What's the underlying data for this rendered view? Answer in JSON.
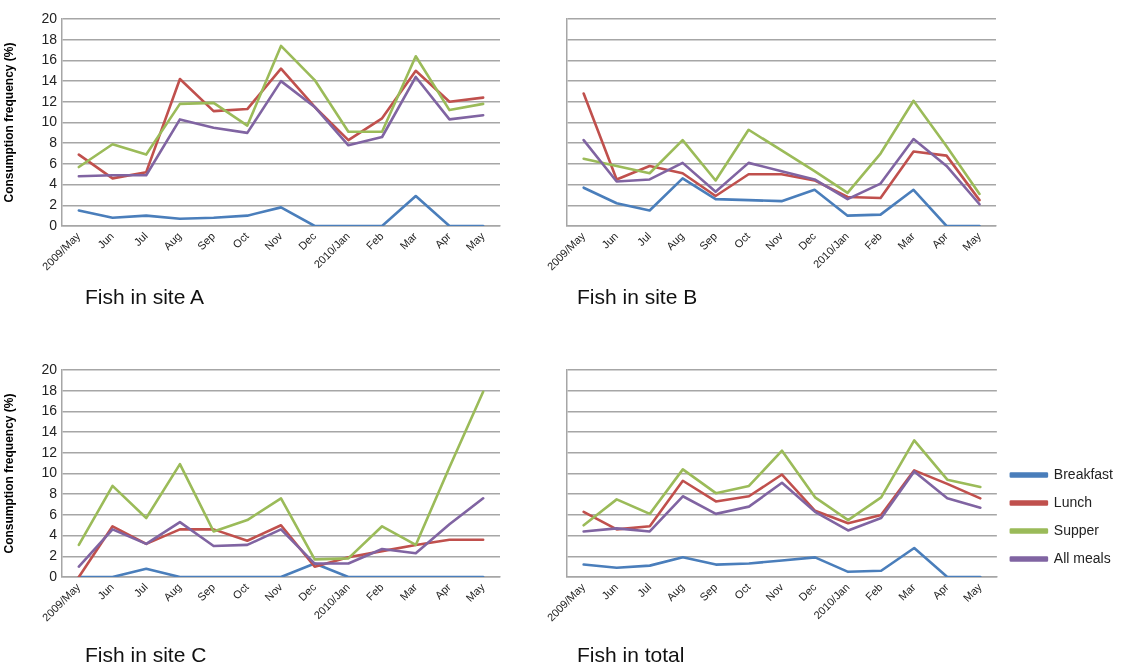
{
  "chart_data": [
    {
      "type": "line",
      "title": "Fish in site A",
      "ylabel": "Consumption frequency (%)",
      "categories": [
        "2009/May",
        "Jun",
        "Jul",
        "Aug",
        "Sep",
        "Oct",
        "Nov",
        "Dec",
        "2010/Jan",
        "Feb",
        "Mar",
        "Apr",
        "May"
      ],
      "series": [
        {
          "color": "#4a7ebb",
          "values": [
            1.5,
            0.8,
            1.0,
            0.7,
            0.8,
            1.0,
            1.8,
            0,
            0,
            0,
            2.9,
            0,
            0
          ]
        },
        {
          "color": "#c0504d",
          "values": [
            6.9,
            4.6,
            5.2,
            14.2,
            11.1,
            11.3,
            15.2,
            11.5,
            8.3,
            10.4,
            15.0,
            12.0,
            12.4
          ]
        },
        {
          "color": "#9bbb59",
          "values": [
            5.7,
            7.9,
            6.9,
            11.8,
            11.9,
            9.7,
            17.4,
            14.1,
            9.1,
            9.1,
            16.4,
            11.2,
            11.8
          ]
        },
        {
          "color": "#8064a2",
          "values": [
            4.8,
            4.9,
            4.9,
            10.3,
            9.5,
            9.0,
            14.0,
            11.5,
            7.8,
            8.6,
            14.4,
            10.3,
            10.7
          ]
        }
      ],
      "ylim": [
        0,
        20
      ],
      "yticks": [
        0,
        2,
        4,
        6,
        8,
        10,
        12,
        14,
        16,
        18,
        20
      ],
      "grid": "y",
      "marker": "none"
    },
    {
      "type": "line",
      "title": "Fish in site B",
      "categories": [
        "2009/May",
        "Jun",
        "Jul",
        "Aug",
        "Sep",
        "Oct",
        "Nov",
        "Dec",
        "2010/Jan",
        "Feb",
        "Mar",
        "Apr",
        "May"
      ],
      "series": [
        {
          "color": "#4a7ebb",
          "values": [
            3.7,
            2.2,
            1.5,
            4.6,
            2.6,
            2.5,
            2.4,
            3.5,
            1.0,
            1.1,
            3.5,
            0,
            0
          ]
        },
        {
          "color": "#c0504d",
          "values": [
            12.8,
            4.5,
            5.8,
            5.1,
            2.9,
            5.0,
            5.0,
            4.4,
            2.8,
            2.7,
            7.2,
            6.8,
            2.5
          ]
        },
        {
          "color": "#9bbb59",
          "values": [
            6.5,
            5.8,
            5.1,
            8.3,
            4.4,
            9.3,
            7.3,
            5.3,
            3.2,
            7.0,
            12.1,
            7.7,
            3.1
          ]
        },
        {
          "color": "#8064a2",
          "values": [
            8.3,
            4.3,
            4.5,
            6.1,
            3.3,
            6.1,
            5.3,
            4.5,
            2.6,
            4.1,
            8.4,
            5.8,
            2.1
          ]
        }
      ],
      "ylim": [
        0,
        20
      ],
      "yticks": [
        0,
        2,
        4,
        6,
        8,
        10,
        12,
        14,
        16,
        18,
        20
      ],
      "grid": "y",
      "marker": "none",
      "tick_labels": "x"
    },
    {
      "type": "line",
      "title": "Fish in site C",
      "ylabel": "Consumption frequency (%)",
      "categories": [
        "2009/May",
        "Jun",
        "Jul",
        "Aug",
        "Sep",
        "Oct",
        "Nov",
        "Dec",
        "2010/Jan",
        "Feb",
        "Mar",
        "Apr",
        "May"
      ],
      "series": [
        {
          "color": "#4a7ebb",
          "values": [
            0,
            0,
            0.8,
            0,
            0,
            0,
            0,
            1.3,
            0,
            0,
            0,
            0,
            0
          ]
        },
        {
          "color": "#c0504d",
          "values": [
            0,
            4.9,
            3.2,
            4.6,
            4.6,
            3.5,
            5.0,
            1.0,
            1.9,
            2.5,
            3.1,
            3.6,
            3.6
          ]
        },
        {
          "color": "#9bbb59",
          "values": [
            3.1,
            8.8,
            5.7,
            10.9,
            4.4,
            5.5,
            7.6,
            1.7,
            1.8,
            4.9,
            3.1,
            10.6,
            17.9
          ]
        },
        {
          "color": "#8064a2",
          "values": [
            1.0,
            4.6,
            3.2,
            5.3,
            3.0,
            3.1,
            4.6,
            1.3,
            1.3,
            2.7,
            2.3,
            5.1,
            7.6
          ]
        }
      ],
      "ylim": [
        0,
        20
      ],
      "yticks": [
        0,
        2,
        4,
        6,
        8,
        10,
        12,
        14,
        16,
        18,
        20
      ],
      "grid": "y",
      "marker": "none"
    },
    {
      "type": "line",
      "title": "Fish in total",
      "categories": [
        "2009/May",
        "Jun",
        "Jul",
        "Aug",
        "Sep",
        "Oct",
        "Nov",
        "Dec",
        "2010/Jan",
        "Feb",
        "Mar",
        "Apr",
        "May"
      ],
      "series": [
        {
          "name": "Breakfast",
          "color": "#4a7ebb",
          "values": [
            1.2,
            0.9,
            1.1,
            1.9,
            1.2,
            1.3,
            1.6,
            1.9,
            0.5,
            0.6,
            2.8,
            0,
            0
          ]
        },
        {
          "name": "Lunch",
          "color": "#c0504d",
          "values": [
            6.3,
            4.6,
            4.9,
            9.3,
            7.3,
            7.8,
            9.9,
            6.4,
            5.2,
            6.0,
            10.3,
            9.0,
            7.6
          ]
        },
        {
          "name": "Supper",
          "color": "#9bbb59",
          "values": [
            5.0,
            7.5,
            6.1,
            10.4,
            8.1,
            8.8,
            12.2,
            7.7,
            5.5,
            7.7,
            13.2,
            9.4,
            8.7
          ]
        },
        {
          "name": "All meals",
          "color": "#8064a2",
          "values": [
            4.4,
            4.7,
            4.4,
            7.8,
            6.1,
            6.8,
            9.1,
            6.3,
            4.5,
            5.7,
            10.2,
            7.6,
            6.7
          ]
        }
      ],
      "ylim": [
        0,
        20
      ],
      "yticks": [
        0,
        2,
        4,
        6,
        8,
        10,
        12,
        14,
        16,
        18,
        20
      ],
      "grid": "y",
      "marker": "none",
      "tick_labels": "x",
      "legend": "right"
    }
  ]
}
